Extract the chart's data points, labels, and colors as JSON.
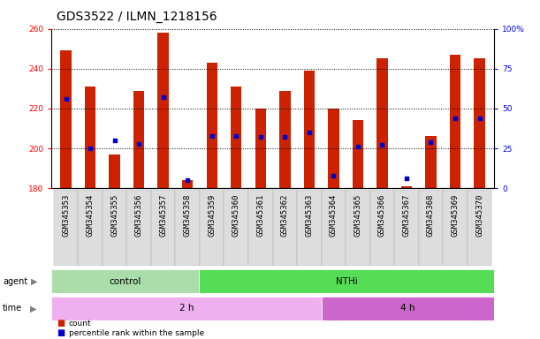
{
  "title": "GDS3522 / ILMN_1218156",
  "samples": [
    "GSM345353",
    "GSM345354",
    "GSM345355",
    "GSM345356",
    "GSM345357",
    "GSM345358",
    "GSM345359",
    "GSM345360",
    "GSM345361",
    "GSM345362",
    "GSM345363",
    "GSM345364",
    "GSM345365",
    "GSM345366",
    "GSM345367",
    "GSM345368",
    "GSM345369",
    "GSM345370"
  ],
  "counts": [
    249,
    231,
    197,
    229,
    258,
    184,
    243,
    231,
    220,
    229,
    239,
    220,
    214,
    245,
    181,
    206,
    247,
    245
  ],
  "percentile_ranks": [
    56,
    25,
    30,
    28,
    57,
    5,
    33,
    33,
    32,
    32,
    35,
    8,
    26,
    27,
    6,
    29,
    44,
    44
  ],
  "ymin": 180,
  "ymax": 260,
  "yticks": [
    180,
    200,
    220,
    240,
    260
  ],
  "right_yticks": [
    0,
    25,
    50,
    75,
    100
  ],
  "bar_color": "#cc2200",
  "dot_color": "#0000cc",
  "background_color": "#ffffff",
  "agent_groups": [
    {
      "label": "control",
      "start": 0,
      "end": 6,
      "color": "#aaddaa"
    },
    {
      "label": "NTHi",
      "start": 6,
      "end": 18,
      "color": "#55dd55"
    }
  ],
  "time_groups": [
    {
      "label": "2 h",
      "start": 0,
      "end": 11,
      "color": "#eeb0ee"
    },
    {
      "label": "4 h",
      "start": 11,
      "end": 18,
      "color": "#cc66cc"
    }
  ],
  "legend_count_label": "count",
  "legend_percentile_label": "percentile rank within the sample",
  "bar_width": 0.45,
  "title_fontsize": 10,
  "tick_fontsize": 6.5,
  "label_fontsize": 7,
  "row_label_fontsize": 7,
  "group_fontsize": 7.5
}
